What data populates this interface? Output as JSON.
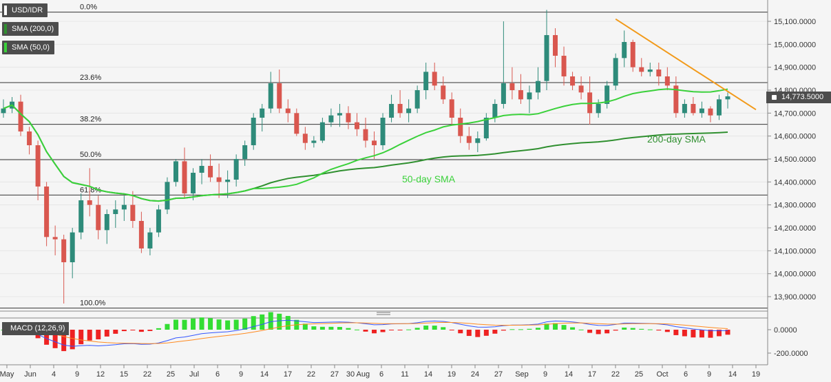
{
  "symbol": "USD/IDR",
  "legend": {
    "symbol_label": "USD/IDR",
    "sma200_label": "SMA (200,0)",
    "sma50_label": "SMA (50,0)",
    "macd_label": "MACD (12,26,9)"
  },
  "last_price": "14,773.5000",
  "colors": {
    "up": "#2e8b7a",
    "down": "#d9574f",
    "sma50": "#3ad13a",
    "sma200": "#2f8f2f",
    "trendline": "#f29a1a",
    "macd_line": "#3355ff",
    "signal_line": "#ff8a1f",
    "hist_pos": "#33dd33",
    "hist_neg": "#ee2222"
  },
  "chart_data": {
    "type": "candlestick",
    "title": "USD/IDR",
    "y_ticks": [
      "15,100.0000",
      "15,000.0000",
      "14,900.0000",
      "14,800.0000",
      "14,700.0000",
      "14,600.0000",
      "14,500.0000",
      "14,400.0000",
      "14,300.0000",
      "14,200.0000",
      "14,100.0000",
      "14,000.0000",
      "13,900.0000"
    ],
    "ylim": [
      13860,
      15145
    ],
    "x_tick_labels": [
      "May",
      "Jun",
      "4",
      "9",
      "12",
      "15",
      "22",
      "25",
      "Jul",
      "6",
      "9",
      "14",
      "17",
      "22",
      "27",
      "30 Aug",
      "6",
      "11",
      "14",
      "19",
      "24",
      "27",
      "Sep",
      "9",
      "14",
      "17",
      "22",
      "25",
      "Oct",
      "6",
      "9",
      "14",
      "19"
    ],
    "fibonacci": [
      {
        "label": "0.0%",
        "value": 15140
      },
      {
        "label": "23.6%",
        "value": 14833
      },
      {
        "label": "38.2%",
        "value": 14651
      },
      {
        "label": "50.0%",
        "value": 14497
      },
      {
        "label": "61.8%",
        "value": 14343
      },
      {
        "label": "100.0%",
        "value": 13850
      }
    ],
    "annotations": {
      "sma200": "200-day SMA",
      "sma50": "50-day SMA"
    },
    "candles": [
      [
        14700,
        14760,
        14680,
        14720
      ],
      [
        14720,
        14770,
        14700,
        14750
      ],
      [
        14750,
        14780,
        14600,
        14620
      ],
      [
        14620,
        14640,
        14520,
        14560
      ],
      [
        14560,
        14580,
        14320,
        14380
      ],
      [
        14380,
        14400,
        14120,
        14160
      ],
      [
        14160,
        14210,
        14080,
        14150
      ],
      [
        14150,
        14170,
        13870,
        14050
      ],
      [
        14050,
        14200,
        13980,
        14180
      ],
      [
        14180,
        14350,
        14150,
        14320
      ],
      [
        14320,
        14460,
        14250,
        14300
      ],
      [
        14300,
        14340,
        14150,
        14190
      ],
      [
        14190,
        14280,
        14130,
        14260
      ],
      [
        14260,
        14320,
        14200,
        14280
      ],
      [
        14280,
        14340,
        14230,
        14300
      ],
      [
        14300,
        14360,
        14200,
        14230
      ],
      [
        14230,
        14270,
        14090,
        14110
      ],
      [
        14110,
        14200,
        14080,
        14180
      ],
      [
        14180,
        14300,
        14160,
        14280
      ],
      [
        14280,
        14420,
        14260,
        14400
      ],
      [
        14400,
        14500,
        14380,
        14490
      ],
      [
        14490,
        14550,
        14330,
        14350
      ],
      [
        14350,
        14460,
        14320,
        14440
      ],
      [
        14440,
        14500,
        14390,
        14470
      ],
      [
        14470,
        14520,
        14400,
        14420
      ],
      [
        14420,
        14480,
        14330,
        14400
      ],
      [
        14400,
        14450,
        14330,
        14410
      ],
      [
        14410,
        14520,
        14380,
        14500
      ],
      [
        14500,
        14580,
        14470,
        14560
      ],
      [
        14560,
        14700,
        14540,
        14680
      ],
      [
        14680,
        14740,
        14620,
        14720
      ],
      [
        14720,
        14880,
        14700,
        14830
      ],
      [
        14830,
        14890,
        14700,
        14720
      ],
      [
        14720,
        14760,
        14660,
        14700
      ],
      [
        14700,
        14720,
        14600,
        14610
      ],
      [
        14610,
        14640,
        14540,
        14570
      ],
      [
        14570,
        14600,
        14550,
        14580
      ],
      [
        14580,
        14680,
        14570,
        14660
      ],
      [
        14660,
        14720,
        14640,
        14690
      ],
      [
        14690,
        14740,
        14640,
        14700
      ],
      [
        14700,
        14730,
        14630,
        14660
      ],
      [
        14660,
        14700,
        14600,
        14630
      ],
      [
        14630,
        14680,
        14550,
        14580
      ],
      [
        14580,
        14620,
        14500,
        14560
      ],
      [
        14560,
        14700,
        14540,
        14680
      ],
      [
        14680,
        14780,
        14660,
        14740
      ],
      [
        14740,
        14800,
        14680,
        14700
      ],
      [
        14700,
        14760,
        14660,
        14720
      ],
      [
        14720,
        14820,
        14700,
        14800
      ],
      [
        14800,
        14920,
        14760,
        14880
      ],
      [
        14880,
        14920,
        14800,
        14820
      ],
      [
        14820,
        14860,
        14740,
        14760
      ],
      [
        14760,
        14790,
        14650,
        14680
      ],
      [
        14680,
        14720,
        14570,
        14600
      ],
      [
        14600,
        14640,
        14540,
        14570
      ],
      [
        14570,
        14620,
        14530,
        14590
      ],
      [
        14590,
        14700,
        14580,
        14680
      ],
      [
        14680,
        14760,
        14660,
        14740
      ],
      [
        14740,
        15100,
        14720,
        14830
      ],
      [
        14830,
        14900,
        14760,
        14800
      ],
      [
        14800,
        14870,
        14740,
        14760
      ],
      [
        14760,
        14820,
        14700,
        14790
      ],
      [
        14790,
        14900,
        14760,
        14840
      ],
      [
        14840,
        15150,
        14800,
        15040
      ],
      [
        15040,
        15070,
        14900,
        14950
      ],
      [
        14950,
        14990,
        14820,
        14860
      ],
      [
        14860,
        14880,
        14800,
        14820
      ],
      [
        14820,
        14860,
        14760,
        14790
      ],
      [
        14790,
        14860,
        14650,
        14700
      ],
      [
        14700,
        14760,
        14680,
        14740
      ],
      [
        14740,
        14840,
        14720,
        14820
      ],
      [
        14820,
        14960,
        14800,
        14940
      ],
      [
        14940,
        15060,
        14900,
        15010
      ],
      [
        15010,
        15020,
        14880,
        14900
      ],
      [
        14900,
        14940,
        14860,
        14880
      ],
      [
        14880,
        14920,
        14860,
        14890
      ],
      [
        14890,
        14920,
        14820,
        14860
      ],
      [
        14860,
        14900,
        14800,
        14820
      ],
      [
        14820,
        14860,
        14680,
        14700
      ],
      [
        14700,
        14760,
        14680,
        14740
      ],
      [
        14740,
        14770,
        14690,
        14700
      ],
      [
        14700,
        14750,
        14680,
        14720
      ],
      [
        14720,
        14730,
        14660,
        14690
      ],
      [
        14690,
        14780,
        14670,
        14760
      ],
      [
        14760,
        14790,
        14720,
        14773
      ]
    ],
    "macd_ylim": [
      -300,
      100
    ],
    "macd_ticks": [
      "0.0000",
      "-200.0000"
    ]
  }
}
